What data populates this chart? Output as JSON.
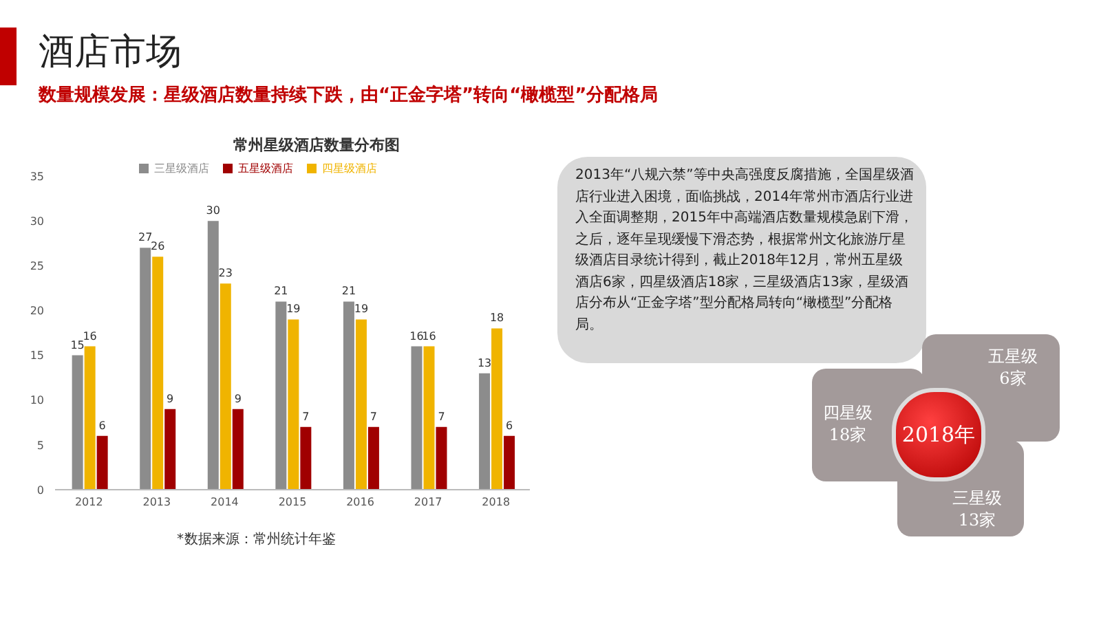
{
  "chart_data": {
    "type": "bar",
    "title": "常州星级酒店数量分布图",
    "categories": [
      "2012",
      "2013",
      "2014",
      "2015",
      "2016",
      "2017",
      "2018"
    ],
    "series": [
      {
        "name": "三星级酒店",
        "color": "#8c8c8c",
        "values": [
          15,
          27,
          30,
          21,
          21,
          16,
          13
        ]
      },
      {
        "name": "四星级酒店",
        "color": "#f0b400",
        "values": [
          16,
          26,
          23,
          19,
          19,
          16,
          18
        ]
      },
      {
        "name": "五星级酒店",
        "color": "#a00000",
        "values": [
          6,
          9,
          9,
          7,
          7,
          7,
          6
        ]
      }
    ],
    "ylim": [
      0,
      35
    ],
    "yticks": [
      0,
      5,
      10,
      15,
      20,
      25,
      30,
      35
    ],
    "legend": "top",
    "data_labels": true,
    "annotations": [
      "酒店市场",
      "数量规模发展：星级酒店数量持续下跌，由“正金字塔”转向“橄榄型”分配格局",
      "2013年“八规六禁”等中央高强度反腐措施，全国星级酒店行业进入困境，面临挑战，2014年常州市酒店行业进入全面调整期，2015年中高端酒店数量规模急剧下滑，之后，逐年呈现缓慢下滑态势，根据常州文化旅游厅星级酒店目录统计得到，截止2018年12月，常州五星级酒店6家，四星级酒店18家，三星级酒店13家，星级酒店分布从“正金字塔”型分配格局转向“橄榄型”分配格局。",
      "五星级\n6家",
      "四星级\n18家",
      "三星级\n13家",
      "2018年",
      "*数据来源：常州统计年鉴"
    ]
  }
}
